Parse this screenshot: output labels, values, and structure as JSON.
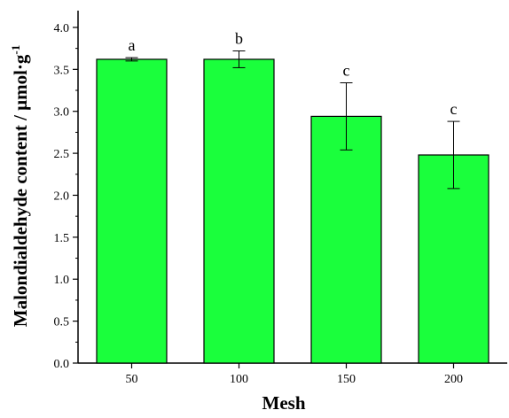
{
  "chart_data": {
    "type": "bar",
    "categories": [
      "50",
      "100",
      "150",
      "200"
    ],
    "values": [
      3.62,
      3.62,
      2.94,
      2.48
    ],
    "errors": [
      0.02,
      0.1,
      0.4,
      0.4
    ],
    "significance_labels": [
      "a",
      "b",
      "c",
      "c"
    ],
    "title": "",
    "xlabel": "Mesh",
    "ylabel": "Malondialdehyde content / μmol·g",
    "ylabel_superscript": "-1",
    "ylim": [
      0,
      4.2
    ],
    "yticks": [
      "0.0",
      "0.5",
      "1.0",
      "1.5",
      "2.0",
      "2.5",
      "3.0",
      "3.5",
      "4.0"
    ],
    "bar_color": "#1aff3c",
    "grid": false,
    "legend": "none"
  }
}
